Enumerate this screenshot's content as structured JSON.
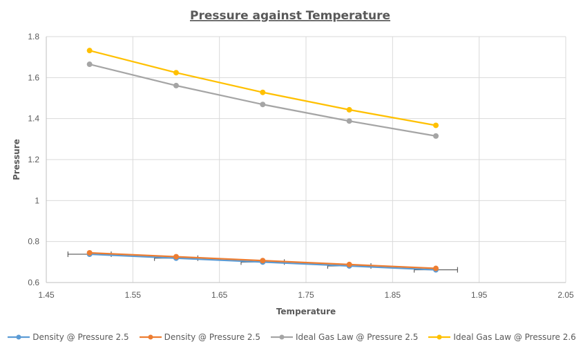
{
  "chart_data": {
    "type": "line",
    "title": "Pressure against Temperature",
    "xlabel": "Temperature",
    "ylabel": "Pressure",
    "xlim": [
      1.45,
      2.05
    ],
    "ylim": [
      0.6,
      1.8
    ],
    "x_ticks": [
      "1.45",
      "1.55",
      "1.65",
      "1.75",
      "1.85",
      "1.95",
      "2.05"
    ],
    "y_ticks": [
      "0.6",
      "0.8",
      "1",
      "1.2",
      "1.4",
      "1.6",
      "1.8"
    ],
    "grid": true,
    "legend_position": "bottom",
    "x": [
      1.5,
      1.6,
      1.7,
      1.8,
      1.9
    ],
    "series": [
      {
        "name": "Density @ Pressure 2.5",
        "color": "#5B9BD5",
        "values": [
          0.738,
          0.719,
          0.7,
          0.681,
          0.662
        ],
        "x_error": 0.025
      },
      {
        "name": "Density @ Pressure 2.5",
        "color": "#ED7D31",
        "values": [
          0.745,
          0.726,
          0.707,
          0.688,
          0.669
        ]
      },
      {
        "name": "Ideal Gas Law @ Pressure 2.5",
        "color": "#A5A5A5",
        "values": [
          1.665,
          1.561,
          1.469,
          1.388,
          1.315
        ]
      },
      {
        "name": "Ideal Gas Law @ Pressure 2.6",
        "color": "#FFC000",
        "values": [
          1.732,
          1.624,
          1.528,
          1.443,
          1.367
        ]
      }
    ]
  }
}
